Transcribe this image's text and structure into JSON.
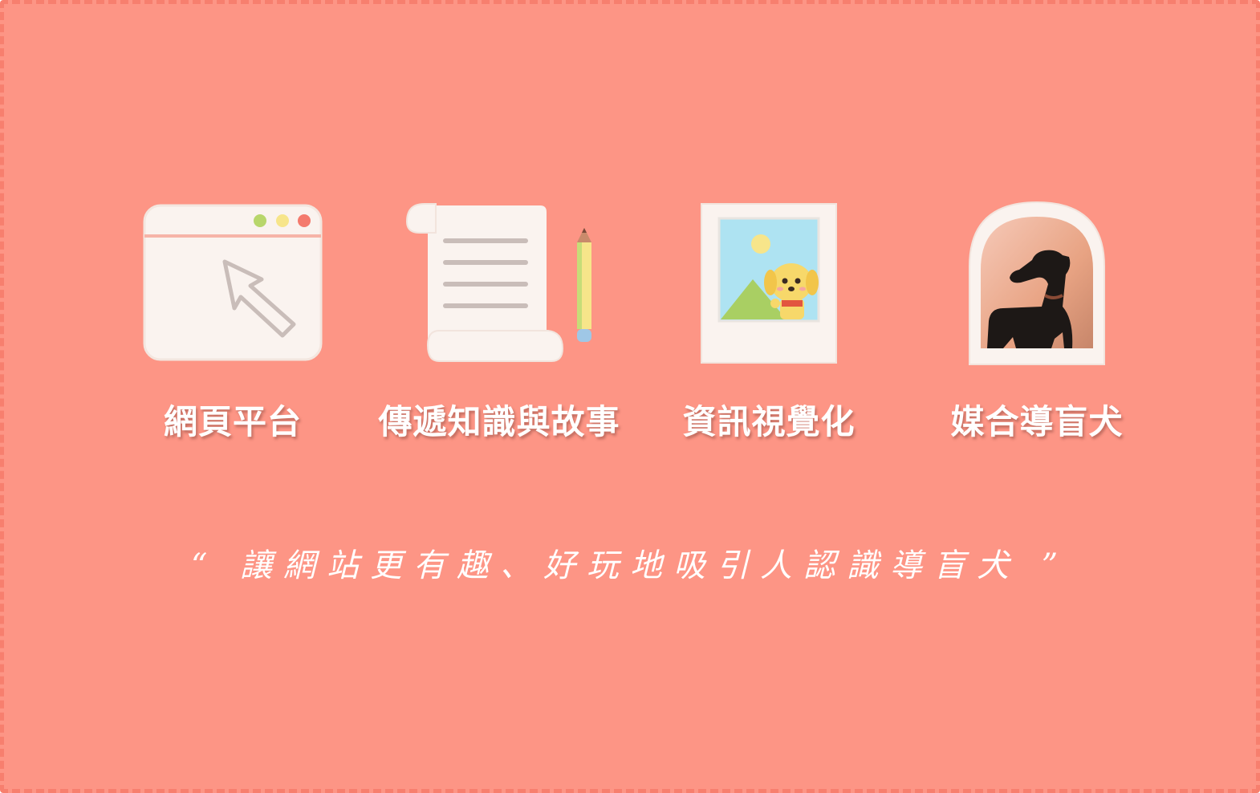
{
  "colors": {
    "background": "#fd9585",
    "border": "#f77f6e",
    "card": "#faf3ef",
    "text": "#ffffff"
  },
  "features": [
    {
      "label": "網頁平台",
      "icon": "browser-window-icon"
    },
    {
      "label": "傳遞知識與故事",
      "icon": "scroll-and-pencil-icon"
    },
    {
      "label": "資訊視覺化",
      "icon": "picture-frame-icon"
    },
    {
      "label": "媒合導盲犬",
      "icon": "dog-photo-icon"
    }
  ],
  "tagline": "“ 讓網站更有趣、好玩地吸引人認識導盲犬 ”"
}
